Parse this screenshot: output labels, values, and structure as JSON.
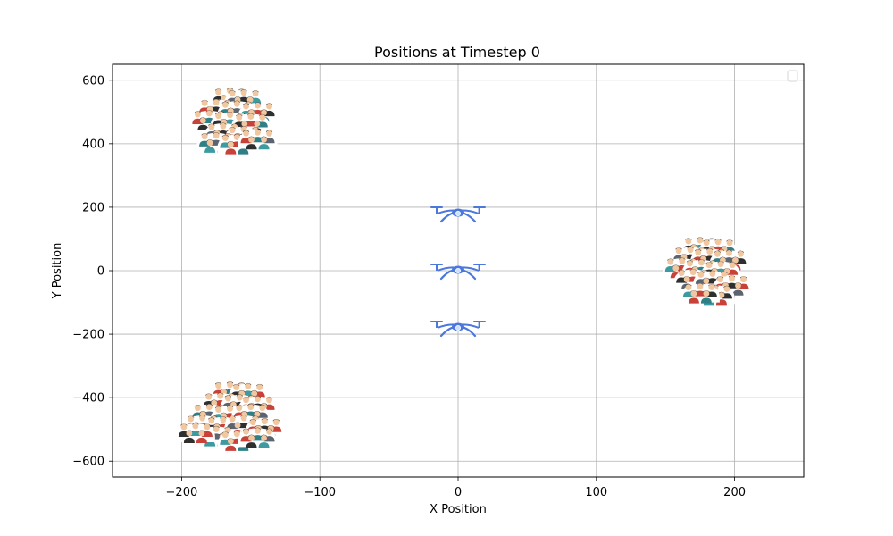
{
  "chart_data": {
    "type": "scatter",
    "title": "Positions at Timestep 0",
    "xlabel": "X Position",
    "ylabel": "Y Position",
    "xlim": [
      -250,
      250
    ],
    "ylim": [
      -650,
      650
    ],
    "xticks": [
      -200,
      -100,
      0,
      100,
      200
    ],
    "yticks": [
      -600,
      -400,
      -200,
      0,
      200,
      400,
      600
    ],
    "xtick_labels": [
      "−200",
      "−100",
      "0",
      "100",
      "200"
    ],
    "ytick_labels": [
      "−600",
      "−400",
      "−200",
      "0",
      "200",
      "400",
      "600"
    ],
    "grid": true,
    "legend": {
      "placement": "top-right",
      "entries": []
    },
    "series": [
      {
        "marker": "drone-icon",
        "color": "#4a78dc",
        "points": [
          {
            "x": 0,
            "y": 180
          },
          {
            "x": 0,
            "y": 0
          },
          {
            "x": 0,
            "y": -180
          }
        ]
      },
      {
        "marker": "people-icon",
        "points": [
          {
            "x": -165,
            "y": 540
          },
          {
            "x": -155,
            "y": 535
          },
          {
            "x": -175,
            "y": 505
          },
          {
            "x": -160,
            "y": 500
          },
          {
            "x": -145,
            "y": 495
          },
          {
            "x": -180,
            "y": 470
          },
          {
            "x": -165,
            "y": 465
          },
          {
            "x": -150,
            "y": 460
          },
          {
            "x": -170,
            "y": 430
          },
          {
            "x": -155,
            "y": 420
          },
          {
            "x": -175,
            "y": 400
          },
          {
            "x": -160,
            "y": 395
          },
          {
            "x": -145,
            "y": 410
          },
          {
            "x": 175,
            "y": 70
          },
          {
            "x": 188,
            "y": 65
          },
          {
            "x": 168,
            "y": 40
          },
          {
            "x": 182,
            "y": 35
          },
          {
            "x": 196,
            "y": 30
          },
          {
            "x": 162,
            "y": 5
          },
          {
            "x": 176,
            "y": 0
          },
          {
            "x": 190,
            "y": -5
          },
          {
            "x": 170,
            "y": -30
          },
          {
            "x": 184,
            "y": -35
          },
          {
            "x": 198,
            "y": -50
          },
          {
            "x": 186,
            "y": -80
          },
          {
            "x": 175,
            "y": -75
          },
          {
            "x": -165,
            "y": -385
          },
          {
            "x": -152,
            "y": -390
          },
          {
            "x": -172,
            "y": -420
          },
          {
            "x": -158,
            "y": -425
          },
          {
            "x": -145,
            "y": -430
          },
          {
            "x": -180,
            "y": -455
          },
          {
            "x": -165,
            "y": -460
          },
          {
            "x": -150,
            "y": -455
          },
          {
            "x": -185,
            "y": -490
          },
          {
            "x": -170,
            "y": -495
          },
          {
            "x": -155,
            "y": -490
          },
          {
            "x": -140,
            "y": -500
          },
          {
            "x": -175,
            "y": -525
          },
          {
            "x": -160,
            "y": -540
          },
          {
            "x": -145,
            "y": -530
          },
          {
            "x": -190,
            "y": -515
          }
        ]
      }
    ]
  }
}
